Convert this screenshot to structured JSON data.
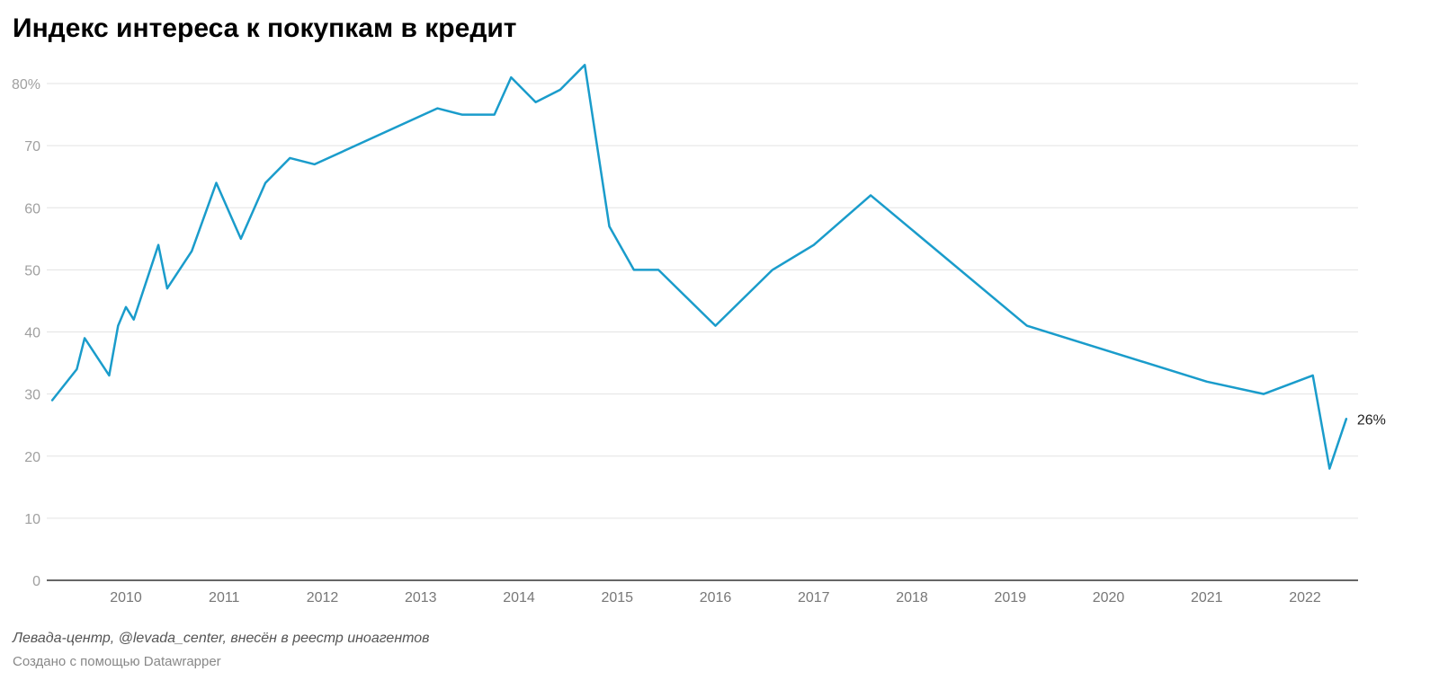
{
  "page": {
    "title": "Индекс интереса к покупкам в кредит",
    "source": "Левада-центр, @levada_center, внесён в реестр иноагентов",
    "credit": "Создано с помощью Datawrapper"
  },
  "chart_data": {
    "type": "line",
    "title": "Индекс интереса к покупкам в кредит",
    "xlabel": "",
    "ylabel": "",
    "ylim": [
      0,
      80
    ],
    "y_ticks": [
      0,
      10,
      20,
      30,
      40,
      50,
      60,
      70,
      80
    ],
    "y_tick_labels": [
      "0",
      "10",
      "20",
      "30",
      "40",
      "50",
      "60",
      "70",
      "80%"
    ],
    "x_ticks": [
      2010,
      2011,
      2012,
      2013,
      2014,
      2015,
      2016,
      2017,
      2018,
      2019,
      2020,
      2021,
      2022
    ],
    "x_tick_labels": [
      "2010",
      "2011",
      "2012",
      "2013",
      "2014",
      "2015",
      "2016",
      "2017",
      "2018",
      "2019",
      "2020",
      "2021",
      "2022"
    ],
    "grid": true,
    "line_color": "#1a9ccb",
    "end_label": "26%",
    "series": [
      {
        "x": [
          2009.25,
          2009.5,
          2009.58,
          2009.83,
          2009.92,
          2010.0,
          2010.08,
          2010.33,
          2010.42,
          2010.67,
          2010.92,
          2011.17,
          2011.42,
          2011.67,
          2011.92,
          2013.17,
          2013.42,
          2013.75,
          2013.92,
          2014.17,
          2014.42,
          2014.67,
          2014.92,
          2015.17,
          2015.42,
          2016.0,
          2016.58,
          2017.0,
          2017.58,
          2019.17,
          2021.0,
          2021.58,
          2022.08,
          2022.25,
          2022.42
        ],
        "values": [
          29,
          34,
          39,
          33,
          41,
          44,
          42,
          54,
          47,
          53,
          64,
          55,
          64,
          68,
          67,
          76,
          75,
          75,
          81,
          77,
          79,
          83,
          57,
          50,
          50,
          41,
          50,
          54,
          62,
          41,
          32,
          30,
          33,
          18,
          26
        ]
      }
    ]
  }
}
